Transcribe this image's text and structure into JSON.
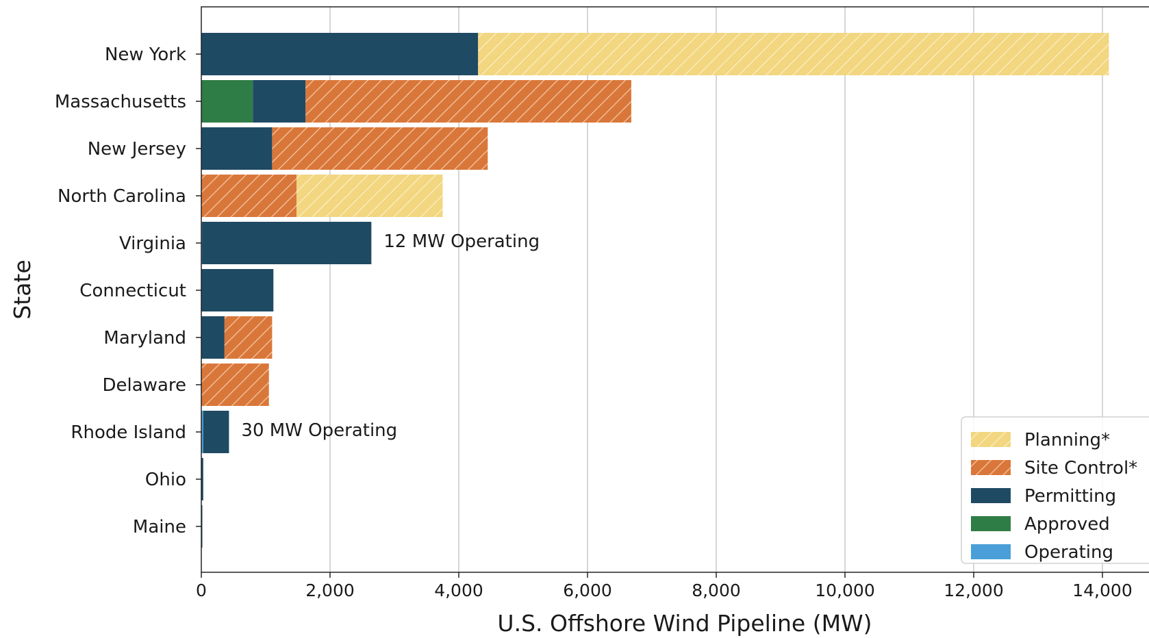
{
  "chart_data": {
    "type": "bar",
    "orientation": "horizontal",
    "stacked": true,
    "title": "",
    "xlabel": "U.S. Offshore Wind Pipeline (MW)",
    "ylabel": "State",
    "xlim": [
      0,
      14500
    ],
    "xticks": [
      0,
      2000,
      4000,
      6000,
      8000,
      10000,
      12000,
      14000
    ],
    "xtick_labels": [
      "0",
      "2,000",
      "4,000",
      "6,000",
      "8,000",
      "10,000",
      "12,000",
      "14,000"
    ],
    "grid": "vertical",
    "legend_position": "bottom-right",
    "categories": [
      "New York",
      "Massachusetts",
      "New Jersey",
      "North Carolina",
      "Virginia",
      "Connecticut",
      "Maryland",
      "Delaware",
      "Rhode Island",
      "Ohio",
      "Maine"
    ],
    "series": [
      {
        "name": "Operating",
        "color": "#4a9fd8",
        "hatch": false,
        "values": [
          0,
          0,
          0,
          0,
          12,
          0,
          0,
          0,
          30,
          0,
          0
        ]
      },
      {
        "name": "Approved",
        "color": "#2f7d46",
        "hatch": false,
        "values": [
          0,
          800,
          0,
          0,
          0,
          0,
          0,
          0,
          0,
          0,
          0
        ]
      },
      {
        "name": "Permitting",
        "color": "#1f4a63",
        "hatch": false,
        "values": [
          4300,
          820,
          1100,
          0,
          2630,
          1120,
          360,
          0,
          400,
          30,
          12
        ]
      },
      {
        "name": "Site Control*",
        "color": "#d9773a",
        "hatch": true,
        "values": [
          0,
          5060,
          3350,
          1480,
          0,
          0,
          740,
          1050,
          0,
          0,
          0
        ]
      },
      {
        "name": "Planning*",
        "color": "#f2d680",
        "hatch": true,
        "values": [
          9800,
          0,
          0,
          2270,
          0,
          0,
          0,
          0,
          0,
          0,
          0
        ]
      }
    ],
    "legend_order": [
      "Planning*",
      "Site Control*",
      "Permitting",
      "Approved",
      "Operating"
    ],
    "annotations": [
      {
        "category": "Virginia",
        "text": "12 MW Operating"
      },
      {
        "category": "Rhode Island",
        "text": "30 MW Operating"
      }
    ]
  }
}
